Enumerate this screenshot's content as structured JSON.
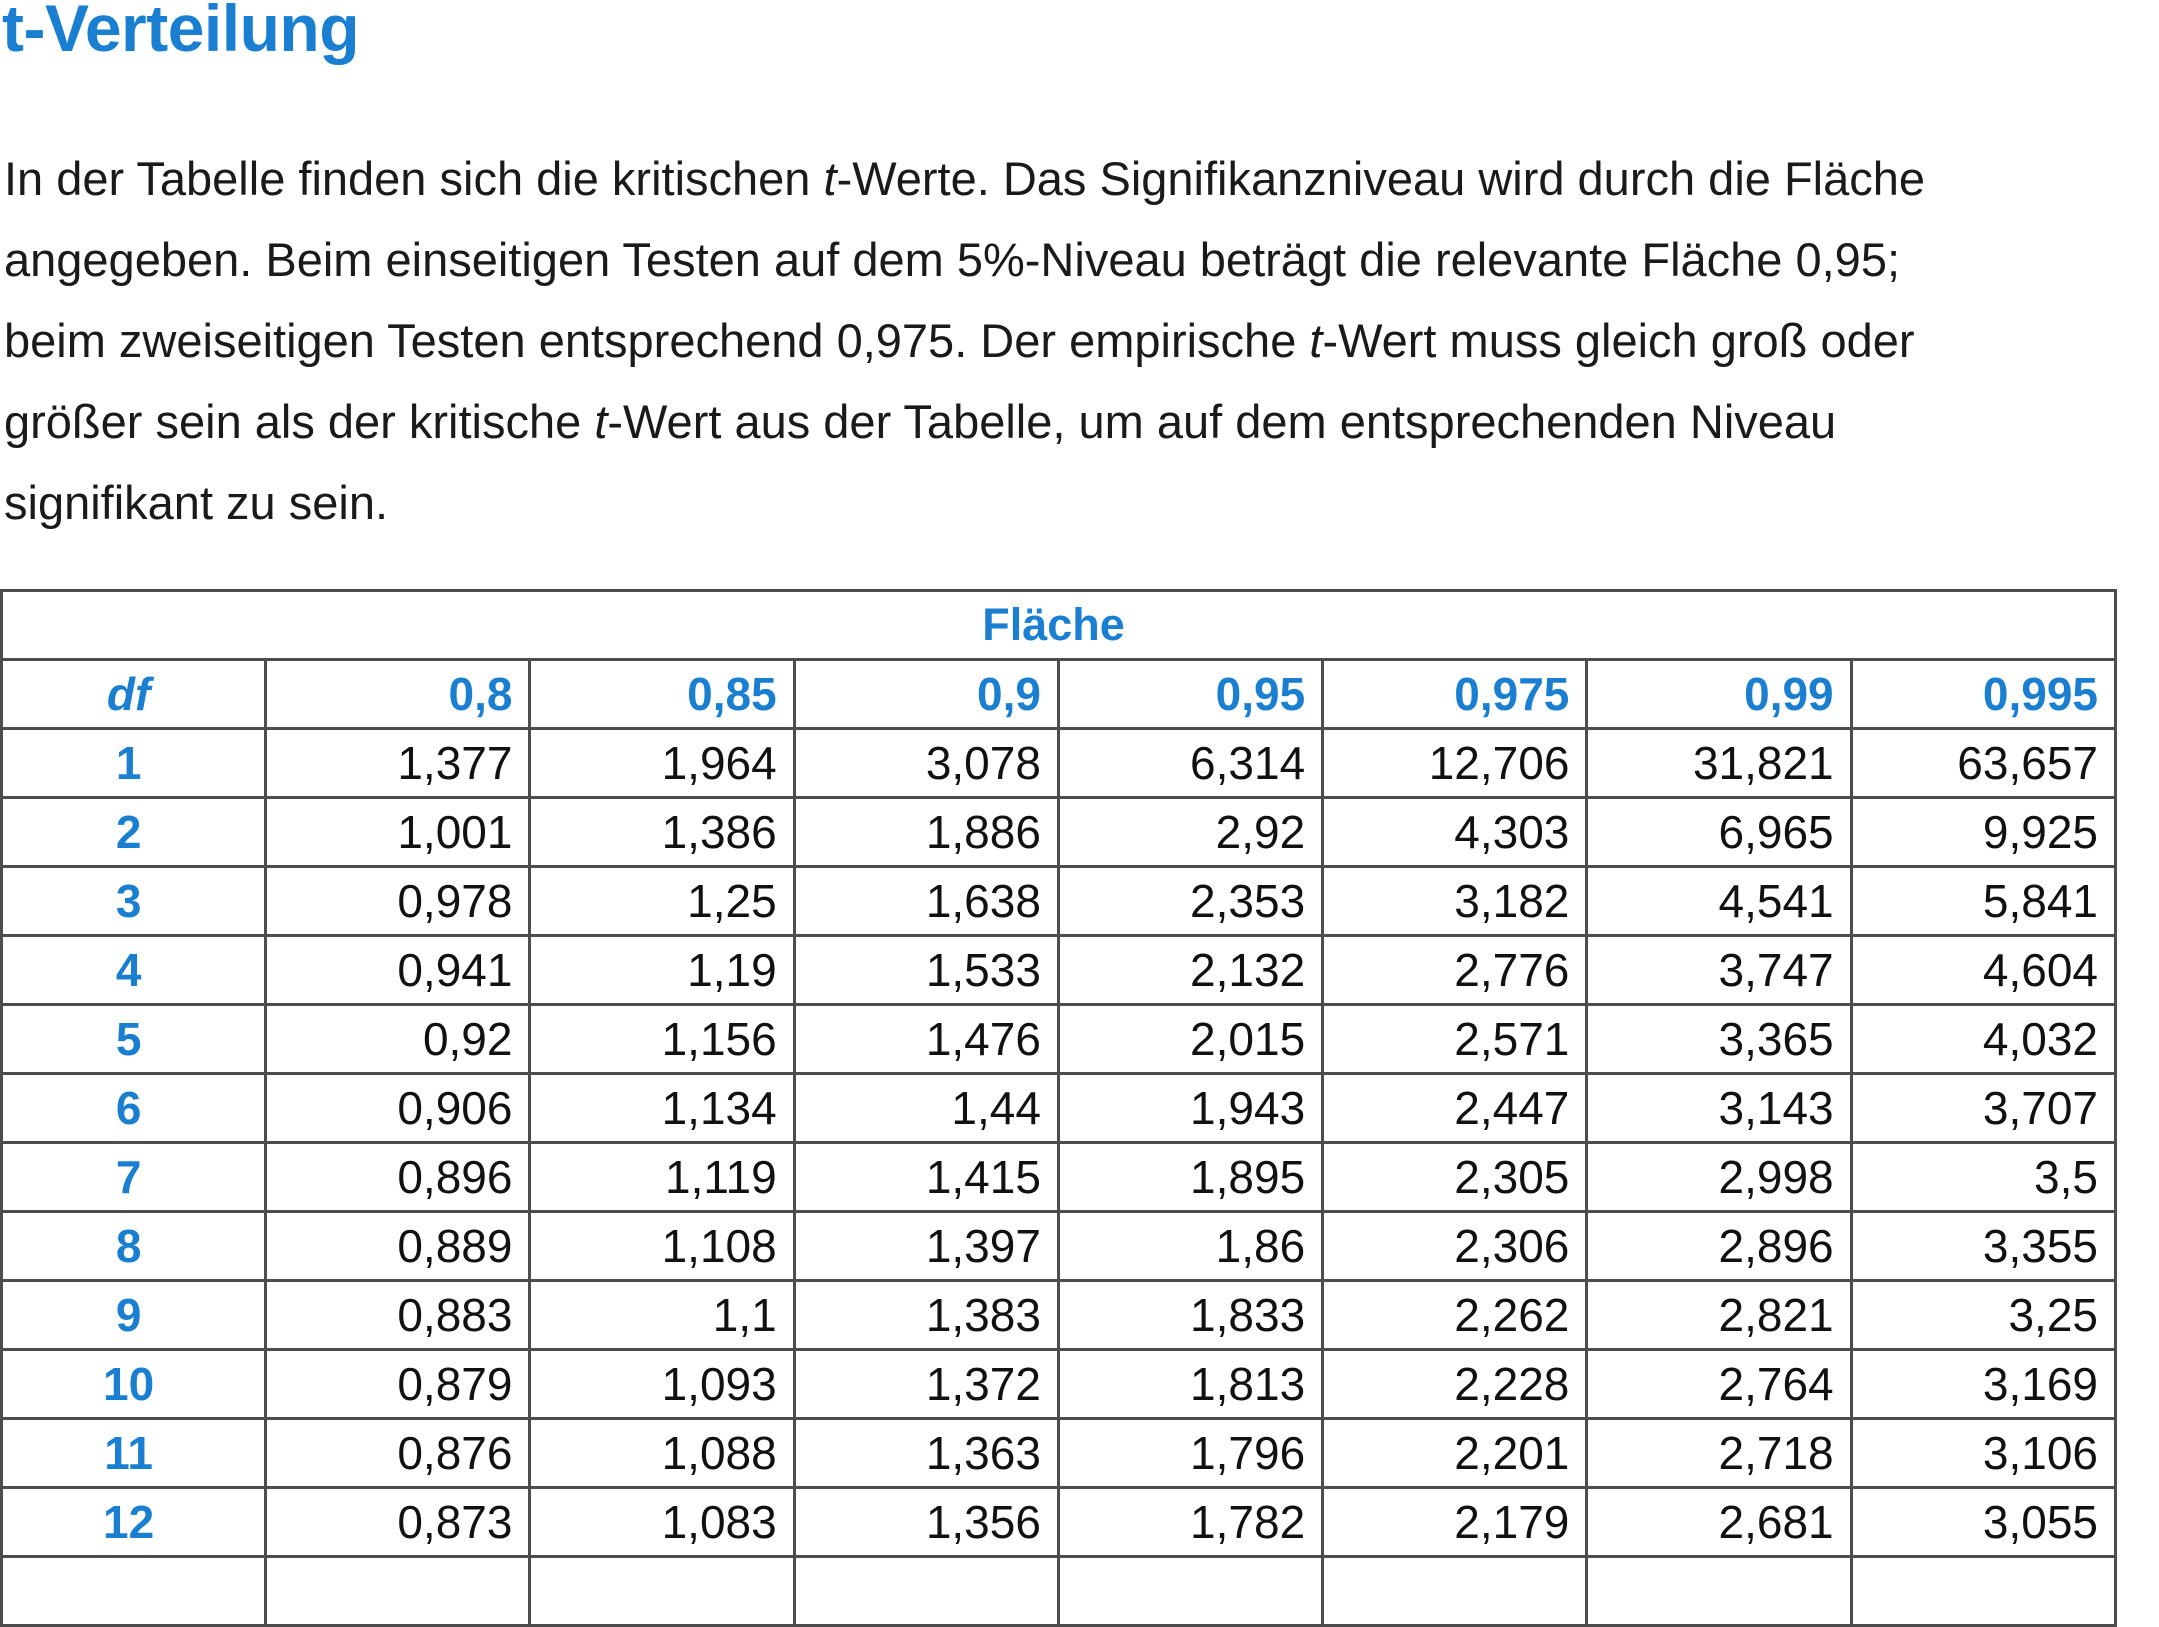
{
  "title": "t-Verteilung",
  "intro": {
    "line1_a": "In der Tabelle finden sich die kritischen ",
    "line1_t": "t",
    "line1_b": "-Werte. Das Signifikanzniveau wird durch die Fläche",
    "line2": "angegeben. Beim einseitigen Testen auf dem 5%-Niveau beträgt die relevante Fläche 0,95;",
    "line3_a": "beim zweiseitigen Testen entsprechend 0,975. Der empirische ",
    "line3_t": "t",
    "line3_b": "-Wert muss gleich groß oder",
    "line4_a": "größer sein als der kritische ",
    "line4_t": "t",
    "line4_b": "-Wert aus der Tabelle, um auf dem entsprechenden Niveau",
    "line5": "signifikant zu sein."
  },
  "table": {
    "area_header": "Fläche",
    "df_header": "df",
    "columns": [
      "0,8",
      "0,85",
      "0,9",
      "0,95",
      "0,975",
      "0,99",
      "0,995"
    ],
    "rows": [
      {
        "df": "1",
        "values": [
          "1,377",
          "1,964",
          "3,078",
          "6,314",
          "12,706",
          "31,821",
          "63,657"
        ]
      },
      {
        "df": "2",
        "values": [
          "1,001",
          "1,386",
          "1,886",
          "2,92",
          "4,303",
          "6,965",
          "9,925"
        ]
      },
      {
        "df": "3",
        "values": [
          "0,978",
          "1,25",
          "1,638",
          "2,353",
          "3,182",
          "4,541",
          "5,841"
        ]
      },
      {
        "df": "4",
        "values": [
          "0,941",
          "1,19",
          "1,533",
          "2,132",
          "2,776",
          "3,747",
          "4,604"
        ]
      },
      {
        "df": "5",
        "values": [
          "0,92",
          "1,156",
          "1,476",
          "2,015",
          "2,571",
          "3,365",
          "4,032"
        ]
      },
      {
        "df": "6",
        "values": [
          "0,906",
          "1,134",
          "1,44",
          "1,943",
          "2,447",
          "3,143",
          "3,707"
        ]
      },
      {
        "df": "7",
        "values": [
          "0,896",
          "1,119",
          "1,415",
          "1,895",
          "2,305",
          "2,998",
          "3,5"
        ]
      },
      {
        "df": "8",
        "values": [
          "0,889",
          "1,108",
          "1,397",
          "1,86",
          "2,306",
          "2,896",
          "3,355"
        ]
      },
      {
        "df": "9",
        "values": [
          "0,883",
          "1,1",
          "1,383",
          "1,833",
          "2,262",
          "2,821",
          "3,25"
        ]
      },
      {
        "df": "10",
        "values": [
          "0,879",
          "1,093",
          "1,372",
          "1,813",
          "2,228",
          "2,764",
          "3,169"
        ]
      },
      {
        "df": "11",
        "values": [
          "0,876",
          "1,088",
          "1,363",
          "1,796",
          "2,201",
          "2,718",
          "3,106"
        ]
      },
      {
        "df": "12",
        "values": [
          "0,873",
          "1,083",
          "1,356",
          "1,782",
          "2,179",
          "2,681",
          "3,055"
        ]
      }
    ]
  },
  "colors": {
    "accent": "#1a7fd0",
    "text": "#111111",
    "border": "#4d4d4d"
  }
}
